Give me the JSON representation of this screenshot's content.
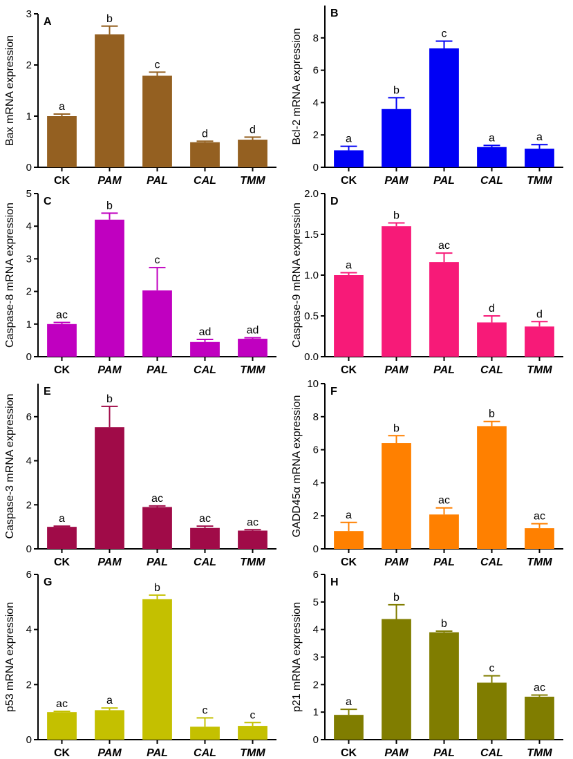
{
  "chart_data": [
    {
      "type": "bar",
      "panel": "A",
      "ylabel": "Bax mRNA expression",
      "categories": [
        "CK",
        "PAM",
        "PAL",
        "CAL",
        "TMM"
      ],
      "italic": [
        false,
        true,
        true,
        true,
        true
      ],
      "values": [
        1.0,
        2.6,
        1.79,
        0.49,
        0.54
      ],
      "errors": [
        0.04,
        0.16,
        0.07,
        0.02,
        0.05
      ],
      "letters": [
        "a",
        "b",
        "c",
        "d",
        "d"
      ],
      "ylim": [
        0,
        3
      ],
      "yticks": [
        0,
        1,
        2,
        3
      ],
      "yticklabels": [
        "0",
        "1",
        "2",
        "3"
      ],
      "color": "#946021"
    },
    {
      "type": "bar",
      "panel": "B",
      "ylabel": "Bcl-2 mRNA expression",
      "categories": [
        "CK",
        "PAM",
        "PAL",
        "CAL",
        "TMM"
      ],
      "italic": [
        false,
        true,
        true,
        true,
        true
      ],
      "values": [
        1.05,
        3.6,
        7.35,
        1.25,
        1.15
      ],
      "errors": [
        0.25,
        0.7,
        0.45,
        0.1,
        0.25
      ],
      "letters": [
        "a",
        "b",
        "c",
        "a",
        "a"
      ],
      "ylim": [
        0,
        10
      ],
      "yticks": [
        0,
        2,
        4,
        6,
        8
      ],
      "yticklabels": [
        "0",
        "2",
        "4",
        "6",
        "8"
      ],
      "color": "#0000f5"
    },
    {
      "type": "bar",
      "panel": "C",
      "ylabel": "Caspase-8 mRNA expression",
      "categories": [
        "CK",
        "PAM",
        "PAL",
        "CAL",
        "TMM"
      ],
      "italic": [
        false,
        true,
        true,
        true,
        true
      ],
      "values": [
        1.0,
        4.2,
        2.03,
        0.45,
        0.55
      ],
      "errors": [
        0.05,
        0.2,
        0.7,
        0.08,
        0.03
      ],
      "letters": [
        "ac",
        "b",
        "c",
        "ad",
        "ad"
      ],
      "ylim": [
        0,
        5
      ],
      "yticks": [
        0,
        1,
        2,
        3,
        4,
        5
      ],
      "yticklabels": [
        "0",
        "1",
        "2",
        "3",
        "4",
        "5"
      ],
      "color": "#c000c0"
    },
    {
      "type": "bar",
      "panel": "D",
      "ylabel": "Caspase-9 mRNA expression",
      "categories": [
        "CK",
        "PAM",
        "PAL",
        "CAL",
        "TMM"
      ],
      "italic": [
        false,
        true,
        true,
        true,
        true
      ],
      "values": [
        1.0,
        1.6,
        1.16,
        0.42,
        0.37
      ],
      "errors": [
        0.03,
        0.04,
        0.11,
        0.08,
        0.06
      ],
      "letters": [
        "a",
        "b",
        "ac",
        "d",
        "d"
      ],
      "ylim": [
        0,
        2.0
      ],
      "yticks": [
        0,
        0.5,
        1.0,
        1.5,
        2.0
      ],
      "yticklabels": [
        "0.0",
        "0.5",
        "1.0",
        "1.5",
        "2.0"
      ],
      "color": "#f71a78"
    },
    {
      "type": "bar",
      "panel": "E",
      "ylabel": "Caspase-3 mRNA expression",
      "categories": [
        "CK",
        "PAM",
        "PAL",
        "CAL",
        "TMM"
      ],
      "italic": [
        false,
        true,
        true,
        true,
        true
      ],
      "values": [
        1.0,
        5.52,
        1.9,
        0.95,
        0.83
      ],
      "errors": [
        0.03,
        0.95,
        0.05,
        0.08,
        0.04
      ],
      "letters": [
        "a",
        "b",
        "ac",
        "ac",
        "ac"
      ],
      "ylim": [
        0,
        7.5
      ],
      "yticks": [
        0,
        2,
        4,
        6
      ],
      "yticklabels": [
        "0",
        "2",
        "4",
        "6"
      ],
      "color": "#a00b48"
    },
    {
      "type": "bar",
      "panel": "F",
      "ylabel": "GADD45α mRNA expression",
      "categories": [
        "CK",
        "PAM",
        "PAL",
        "CAL",
        "TMM"
      ],
      "italic": [
        false,
        true,
        true,
        true,
        true
      ],
      "values": [
        1.08,
        6.4,
        2.08,
        7.43,
        1.25
      ],
      "errors": [
        0.52,
        0.45,
        0.4,
        0.28,
        0.27
      ],
      "letters": [
        "a",
        "b",
        "ac",
        "b",
        "ac"
      ],
      "ylim": [
        0,
        10
      ],
      "yticks": [
        0,
        2,
        4,
        6,
        8,
        10
      ],
      "yticklabels": [
        "0",
        "2",
        "4",
        "6",
        "8",
        "10"
      ],
      "color": "#ff8000"
    },
    {
      "type": "bar",
      "panel": "G",
      "ylabel": "p53 mRNA expression",
      "categories": [
        "CK",
        "PAM",
        "PAL",
        "CAL",
        "TMM"
      ],
      "italic": [
        false,
        true,
        true,
        true,
        true
      ],
      "values": [
        1.0,
        1.07,
        5.1,
        0.47,
        0.5
      ],
      "errors": [
        0.03,
        0.08,
        0.15,
        0.32,
        0.12
      ],
      "letters": [
        "ac",
        "a",
        "b",
        "c",
        "c"
      ],
      "ylim": [
        0,
        6
      ],
      "yticks": [
        0,
        2,
        4,
        6
      ],
      "yticklabels": [
        "0",
        "2",
        "4",
        "6"
      ],
      "color": "#c4c000"
    },
    {
      "type": "bar",
      "panel": "H",
      "ylabel": "p21 mRNA expression",
      "categories": [
        "CK",
        "PAM",
        "PAL",
        "CAL",
        "TMM"
      ],
      "italic": [
        false,
        true,
        true,
        true,
        true
      ],
      "values": [
        0.9,
        4.38,
        3.9,
        2.07,
        1.56
      ],
      "errors": [
        0.2,
        0.52,
        0.04,
        0.25,
        0.06
      ],
      "letters": [
        "a",
        "b",
        "b",
        "c",
        "ac"
      ],
      "ylim": [
        0,
        6
      ],
      "yticks": [
        0,
        1,
        2,
        3,
        4,
        5,
        6
      ],
      "yticklabels": [
        "0",
        "1",
        "2",
        "3",
        "4",
        "5",
        "6"
      ],
      "color": "#807d00"
    }
  ]
}
